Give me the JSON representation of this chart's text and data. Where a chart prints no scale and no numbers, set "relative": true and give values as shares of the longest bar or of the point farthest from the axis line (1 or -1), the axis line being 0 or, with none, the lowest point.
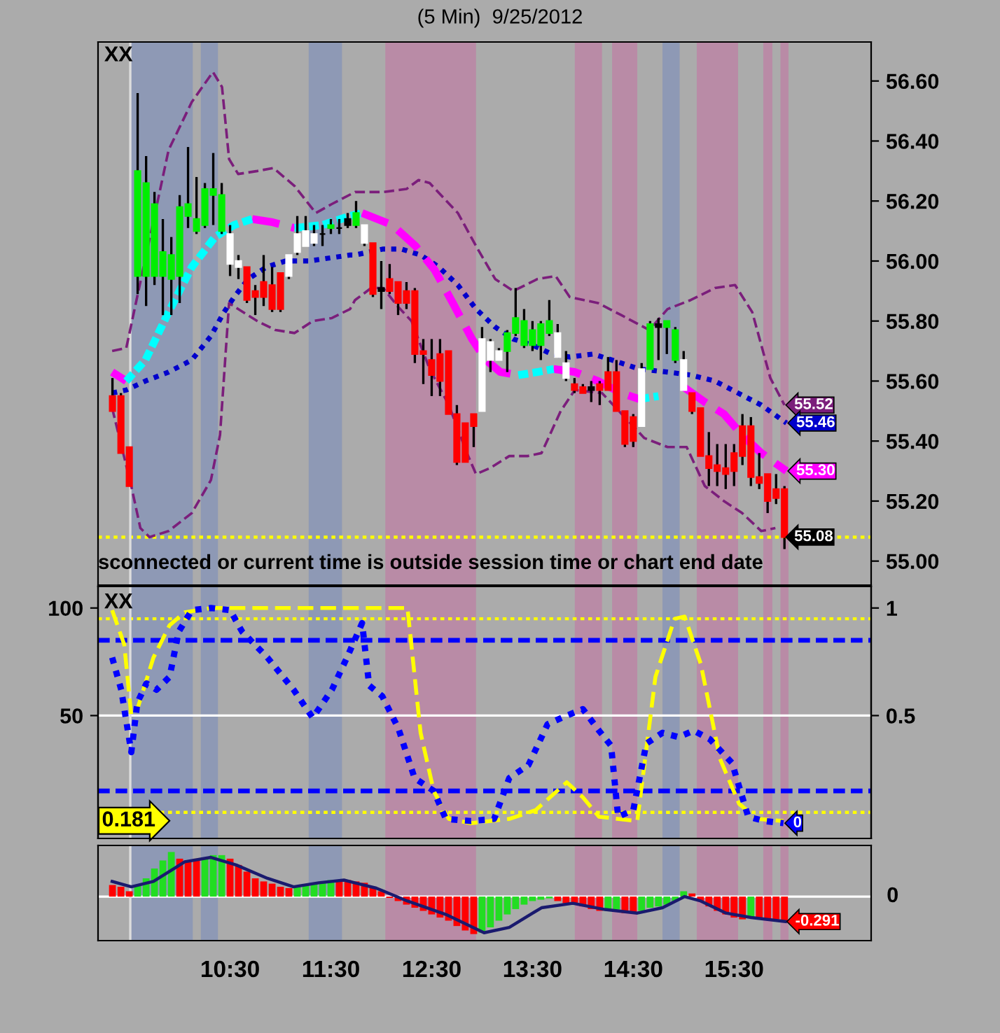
{
  "chart_data": [
    {
      "type": "candlestick",
      "title": "(5 Min)  9/25/2012",
      "x": [
        9.333,
        9.417,
        9.5,
        9.583,
        9.667,
        9.75,
        9.833,
        9.917,
        10,
        10.083,
        10.167,
        10.25,
        10.333,
        10.417,
        10.5,
        10.583,
        10.667,
        10.75,
        10.833,
        10.917,
        11,
        11.083,
        11.167,
        11.25,
        11.333,
        11.417,
        11.5,
        11.583,
        11.667,
        11.75,
        11.833,
        11.917,
        12,
        12.083,
        12.167,
        12.25,
        12.333,
        12.417,
        12.5,
        12.583,
        12.667,
        12.75,
        12.833,
        12.917,
        13,
        13.083,
        13.167,
        13.25,
        13.333,
        13.417,
        13.5,
        13.583,
        13.667,
        13.75,
        13.833,
        13.917,
        14,
        14.083,
        14.167,
        14.25,
        14.333,
        14.417,
        14.5,
        14.583,
        14.667,
        14.75,
        14.833,
        14.917,
        15,
        15.083,
        15.167,
        15.25,
        15.333,
        15.417,
        15.5,
        15.583,
        15.667,
        15.75,
        15.833,
        15.917,
        16
      ],
      "ohlc": [
        [
          55.55,
          55.61,
          55.5,
          55.5
        ],
        [
          55.55,
          55.56,
          55.36,
          55.36
        ],
        [
          55.38,
          55.38,
          55.25,
          55.25
        ],
        [
          55.95,
          56.56,
          55.89,
          56.3
        ],
        [
          55.95,
          56.35,
          55.85,
          56.26
        ],
        [
          55.95,
          56.23,
          55.92,
          56.19
        ],
        [
          55.95,
          56.14,
          55.82,
          56.03
        ],
        [
          55.94,
          56.08,
          55.82,
          56.02
        ],
        [
          55.95,
          56.22,
          55.86,
          56.18
        ],
        [
          56.15,
          56.38,
          56.11,
          56.19
        ],
        [
          56.1,
          56.28,
          56.09,
          56.14
        ],
        [
          56.12,
          56.26,
          56.11,
          56.24
        ],
        [
          56.22,
          56.36,
          56.12,
          56.24
        ],
        [
          56.1,
          56.26,
          56.09,
          56.22
        ],
        [
          55.99,
          56.12,
          55.95,
          56.09
        ],
        [
          55.98,
          56.02,
          55.94,
          56.0
        ],
        [
          55.98,
          55.98,
          55.86,
          55.87
        ],
        [
          55.9,
          55.92,
          55.82,
          55.88
        ],
        [
          55.93,
          56.02,
          55.85,
          55.88
        ],
        [
          55.92,
          55.98,
          55.83,
          55.84
        ],
        [
          55.96,
          55.96,
          55.83,
          55.84
        ],
        [
          55.95,
          56.02,
          55.94,
          56.02
        ],
        [
          56.03,
          56.15,
          56.02,
          56.09
        ],
        [
          56.05,
          56.15,
          56.05,
          56.1
        ],
        [
          56.06,
          56.12,
          56.05,
          56.09
        ],
        [
          56.09,
          56.12,
          56.05,
          56.09
        ],
        [
          56.11,
          56.14,
          56.09,
          56.12
        ],
        [
          56.11,
          56.14,
          56.09,
          56.11
        ],
        [
          56.12,
          56.16,
          56.11,
          56.14
        ],
        [
          56.12,
          56.2,
          56.11,
          56.16
        ],
        [
          56.06,
          56.12,
          56.05,
          56.12
        ],
        [
          56.06,
          56.06,
          55.88,
          55.89
        ],
        [
          55.91,
          56.0,
          55.84,
          55.9
        ],
        [
          55.94,
          55.99,
          55.89,
          55.9
        ],
        [
          55.93,
          55.93,
          55.82,
          55.86
        ],
        [
          55.9,
          55.93,
          55.84,
          55.86
        ],
        [
          55.9,
          55.91,
          55.66,
          55.69
        ],
        [
          55.7,
          55.74,
          55.59,
          55.69
        ],
        [
          55.67,
          55.74,
          55.55,
          55.62
        ],
        [
          55.69,
          55.74,
          55.55,
          55.6
        ],
        [
          55.7,
          55.7,
          55.49,
          55.49
        ],
        [
          55.49,
          55.52,
          55.32,
          55.33
        ],
        [
          55.46,
          55.46,
          55.33,
          55.33
        ],
        [
          55.49,
          55.49,
          55.38,
          55.45
        ],
        [
          55.5,
          55.78,
          55.5,
          55.74
        ],
        [
          55.67,
          55.74,
          55.63,
          55.73
        ],
        [
          55.67,
          55.71,
          55.67,
          55.7
        ],
        [
          55.7,
          55.77,
          55.63,
          55.76
        ],
        [
          55.76,
          55.91,
          55.75,
          55.81
        ],
        [
          55.72,
          55.84,
          55.71,
          55.8
        ],
        [
          55.72,
          55.8,
          55.7,
          55.77
        ],
        [
          55.72,
          55.8,
          55.67,
          55.79
        ],
        [
          55.76,
          55.87,
          55.75,
          55.8
        ],
        [
          55.68,
          55.79,
          55.68,
          55.76
        ],
        [
          55.61,
          55.7,
          55.6,
          55.66
        ],
        [
          55.59,
          55.61,
          55.56,
          55.57
        ],
        [
          55.58,
          55.59,
          55.56,
          55.56
        ],
        [
          55.58,
          55.6,
          55.53,
          55.57
        ],
        [
          55.59,
          55.6,
          55.52,
          55.57
        ],
        [
          55.63,
          55.68,
          55.57,
          55.57
        ],
        [
          55.63,
          55.67,
          55.5,
          55.5
        ],
        [
          55.5,
          55.5,
          55.38,
          55.39
        ],
        [
          55.48,
          55.49,
          55.38,
          55.4
        ],
        [
          55.45,
          55.66,
          55.45,
          55.64
        ],
        [
          55.64,
          55.8,
          55.64,
          55.79
        ],
        [
          55.78,
          55.81,
          55.67,
          55.79
        ],
        [
          55.78,
          55.8,
          55.69,
          55.8
        ],
        [
          55.67,
          55.78,
          55.66,
          55.77
        ],
        [
          55.57,
          55.7,
          55.57,
          55.67
        ],
        [
          55.56,
          55.56,
          55.49,
          55.5
        ],
        [
          55.51,
          55.51,
          55.35,
          55.35
        ],
        [
          55.35,
          55.43,
          55.25,
          55.31
        ],
        [
          55.32,
          55.39,
          55.25,
          55.3
        ],
        [
          55.31,
          55.39,
          55.24,
          55.29
        ],
        [
          55.36,
          55.39,
          55.25,
          55.3
        ],
        [
          55.45,
          55.49,
          55.32,
          55.35
        ],
        [
          55.45,
          55.48,
          55.25,
          55.28
        ],
        [
          55.28,
          55.36,
          55.24,
          55.26
        ],
        [
          55.29,
          55.29,
          55.16,
          55.2
        ],
        [
          55.24,
          55.29,
          55.19,
          55.21
        ],
        [
          55.24,
          55.25,
          55.04,
          55.08
        ]
      ],
      "colors": [
        "#ff0000",
        "#ff0000",
        "#ff0000",
        "#00ee00",
        "#00ee00",
        "#00ee00",
        "#00ee00",
        "#00ee00",
        "#00ee00",
        "#00ee00",
        "#00ee00",
        "#00ee00",
        "#00ee00",
        "#00ee00",
        "#ffffff",
        "#ffffff",
        "#ff0000",
        "#ff0000",
        "#ff0000",
        "#ff0000",
        "#ff0000",
        "#ffffff",
        "#ffffff",
        "#ffffff",
        "#ffffff",
        "#000000",
        "#00ee00",
        "#000000",
        "#000000",
        "#00ee00",
        "#ffffff",
        "#ff0000",
        "#000000",
        "#ff0000",
        "#ff0000",
        "#ff0000",
        "#ff0000",
        "#ff0000",
        "#ff0000",
        "#ff0000",
        "#ff0000",
        "#ff0000",
        "#ff0000",
        "#ff0000",
        "#ffffff",
        "#ffffff",
        "#ffffff",
        "#00ee00",
        "#00ee00",
        "#00ee00",
        "#00ee00",
        "#00ee00",
        "#00ee00",
        "#ffffff",
        "#ffffff",
        "#ff0000",
        "#ff0000",
        "#000000",
        "#ff0000",
        "#ff0000",
        "#ff0000",
        "#ff0000",
        "#ff0000",
        "#ffffff",
        "#00ee00",
        "#000000",
        "#00ee00",
        "#00ee00",
        "#ffffff",
        "#ff0000",
        "#ff0000",
        "#ff0000",
        "#ff0000",
        "#ff0000",
        "#ff0000",
        "#ff0000",
        "#ff0000",
        "#ff0000",
        "#ff0000",
        "#ff0000",
        "#ff0000"
      ],
      "value_labels": [
        null,
        null,
        null,
        null,
        null,
        null,
        null,
        null,
        null,
        null,
        null,
        null,
        null,
        null,
        null,
        null,
        null,
        null,
        null,
        null,
        null,
        null,
        null,
        null,
        null,
        null,
        null,
        null,
        null,
        null,
        null,
        null,
        null,
        null,
        null,
        null,
        null,
        null,
        null,
        null,
        null,
        null,
        null,
        null,
        null,
        null,
        null,
        null,
        null,
        null,
        null,
        null,
        null,
        null,
        null,
        null,
        null,
        null,
        null,
        null,
        null,
        null,
        null,
        null,
        null,
        null,
        null,
        null,
        null,
        null,
        null,
        null,
        null,
        null,
        null,
        null,
        null,
        null,
        null,
        null,
        "55.08"
      ],
      "series": [
        {
          "type": "line",
          "color": "#7b1e7b",
          "line_style": "dashed",
          "x": [
            9.33,
            9.47,
            9.89,
            10.12,
            10.33,
            10.42,
            10.49,
            10.58,
            10.77,
            10.93,
            11.14,
            11.35,
            11.51,
            11.74,
            12.02,
            12.25,
            12.37,
            12.48,
            12.76,
            12.94,
            13.13,
            13.31,
            13.55,
            13.73,
            13.87,
            14.15,
            14.38,
            14.66,
            14.84,
            15.07,
            15.31,
            15.51,
            15.68,
            15.86,
            16.0
          ],
          "values": [
            55.7,
            55.71,
            56.37,
            56.53,
            56.63,
            56.58,
            56.34,
            56.29,
            56.3,
            56.31,
            56.25,
            56.16,
            56.19,
            56.23,
            56.23,
            56.24,
            56.27,
            56.26,
            56.16,
            56.05,
            55.94,
            55.9,
            55.94,
            55.95,
            55.88,
            55.86,
            55.82,
            55.77,
            55.84,
            55.87,
            55.91,
            55.92,
            55.83,
            55.61,
            55.52
          ],
          "value_labels": [
            null,
            null,
            null,
            null,
            null,
            null,
            null,
            null,
            null,
            null,
            null,
            null,
            null,
            null,
            null,
            null,
            null,
            null,
            null,
            null,
            null,
            null,
            null,
            null,
            null,
            null,
            null,
            null,
            null,
            null,
            null,
            null,
            null,
            null,
            "55.52"
          ]
        },
        {
          "type": "line",
          "color": "#7b1e7b",
          "line_style": "dashed",
          "x": [
            9.33,
            9.52,
            9.61,
            9.7,
            9.89,
            10.12,
            10.31,
            10.4,
            10.49,
            10.58,
            10.77,
            10.95,
            11.14,
            11.32,
            11.51,
            11.69,
            11.74,
            11.9,
            12.02,
            12.16,
            12.3,
            12.48,
            12.67,
            12.85,
            12.94,
            13.08,
            13.27,
            13.45,
            13.59,
            13.78,
            13.92,
            14.19,
            14.61,
            14.84,
            15.03,
            15.21,
            15.4,
            15.58,
            15.77,
            15.91
          ],
          "values": [
            55.51,
            55.25,
            55.11,
            55.08,
            55.1,
            55.16,
            55.27,
            55.42,
            55.86,
            55.84,
            55.8,
            55.77,
            55.76,
            55.8,
            55.81,
            55.84,
            55.87,
            55.91,
            55.91,
            55.85,
            55.8,
            55.64,
            55.52,
            55.36,
            55.29,
            55.31,
            55.35,
            55.35,
            55.36,
            55.5,
            55.57,
            55.56,
            55.41,
            55.38,
            55.38,
            55.25,
            55.2,
            55.16,
            55.1,
            55.11
          ]
        },
        {
          "type": "line",
          "color": "#0000cc",
          "line_style": "dotted",
          "x": [
            9.33,
            9.47,
            9.66,
            9.89,
            10.12,
            10.31,
            10.44,
            10.54,
            10.68,
            10.86,
            11.05,
            11.28,
            11.69,
            11.74,
            12.02,
            12.2,
            12.39,
            12.57,
            12.76,
            12.94,
            13.13,
            13.31,
            13.5,
            13.69,
            13.87,
            14.1,
            14.29,
            14.56,
            14.84,
            15.07,
            15.31,
            15.54,
            15.77,
            16.02
          ],
          "values": [
            55.56,
            55.57,
            55.6,
            55.63,
            55.67,
            55.75,
            55.83,
            55.88,
            55.94,
            55.98,
            56.0,
            56.0,
            56.02,
            56.02,
            56.04,
            56.04,
            56.02,
            55.98,
            55.92,
            55.84,
            55.78,
            55.74,
            55.72,
            55.69,
            55.68,
            55.69,
            55.67,
            55.64,
            55.63,
            55.62,
            55.6,
            55.56,
            55.52,
            55.46
          ],
          "value_labels": [
            null,
            null,
            null,
            null,
            null,
            null,
            null,
            null,
            null,
            null,
            null,
            null,
            null,
            null,
            null,
            null,
            null,
            null,
            null,
            null,
            null,
            null,
            null,
            null,
            null,
            null,
            null,
            null,
            null,
            null,
            null,
            null,
            null,
            "55.46"
          ]
        },
        {
          "type": "line",
          "color": "#ff00ff",
          "line_style": "dashed",
          "x": [
            9.33,
            9.47,
            9.66,
            10.72,
            10.91,
            11.14,
            11.42,
            11.81,
            12.11,
            12.34,
            12.53,
            12.71,
            12.9,
            13.04,
            13.18,
            13.36,
            13.55,
            13.71,
            13.92,
            14.15,
            14.38,
            14.56,
            14.75,
            15.0,
            15.21,
            15.4,
            15.58,
            15.77,
            16.02
          ],
          "values": [
            55.63,
            55.6,
            null,
            56.14,
            56.13,
            56.11,
            null,
            56.16,
            56.12,
            56.05,
            55.97,
            55.86,
            55.74,
            55.67,
            55.63,
            55.62,
            null,
            55.64,
            55.63,
            55.6,
            55.56,
            55.54,
            null,
            55.58,
            55.53,
            55.49,
            55.42,
            55.36,
            55.3
          ],
          "value_labels": [
            null,
            null,
            null,
            null,
            null,
            null,
            null,
            null,
            null,
            null,
            null,
            null,
            null,
            null,
            null,
            null,
            null,
            null,
            null,
            null,
            null,
            null,
            null,
            null,
            null,
            null,
            null,
            null,
            "55.30"
          ]
        },
        {
          "type": "line",
          "color": "#00ffff",
          "line_style": "dashed",
          "x": [
            9.47,
            9.66,
            9.89,
            10.12,
            10.35,
            10.54,
            10.72,
            10.91,
            11.14,
            11.42,
            11.69,
            11.81,
            12.11,
            13.36,
            13.55,
            13.71,
            13.92,
            14.56,
            14.75
          ],
          "values": [
            55.6,
            55.67,
            55.83,
            55.98,
            56.08,
            56.12,
            56.14,
            null,
            56.11,
            56.12,
            56.15,
            56.16,
            null,
            55.62,
            55.63,
            55.64,
            null,
            55.54,
            55.55
          ]
        }
      ],
      "xlim": [
        9.19,
        16.86
      ],
      "ylim": [
        54.92,
        56.73
      ],
      "yticks": [
        {
          "value": 55,
          "label": "55.00"
        },
        {
          "value": 55.2,
          "label": "55.20"
        },
        {
          "value": 55.4,
          "label": "55.40"
        },
        {
          "value": 55.6,
          "label": "55.60"
        },
        {
          "value": 55.8,
          "label": "55.80"
        },
        {
          "value": 56,
          "label": "56.00"
        },
        {
          "value": 56.2,
          "label": "56.20"
        },
        {
          "value": 56.4,
          "label": "56.40"
        },
        {
          "value": 56.6,
          "label": "56.60"
        }
      ],
      "tick_labels": "y",
      "ref_lines": [
        {
          "axis": "y",
          "value": 55.08,
          "color": "#ffff00",
          "line_style": "dotted"
        },
        {
          "axis": "x",
          "value": 9.51,
          "color": "#dddddd",
          "line_style": "solid"
        }
      ],
      "bands": [
        {
          "axis": "x",
          "from": 9.51,
          "to": 10.13,
          "color": "#8e99b5"
        },
        {
          "axis": "x",
          "from": 10.21,
          "to": 10.38,
          "color": "#8e99b5"
        },
        {
          "axis": "x",
          "from": 11.28,
          "to": 11.61,
          "color": "#8e99b5"
        },
        {
          "axis": "x",
          "from": 12.04,
          "to": 12.94,
          "color": "#b98ba6"
        },
        {
          "axis": "x",
          "from": 13.92,
          "to": 14.19,
          "color": "#b98ba6"
        },
        {
          "axis": "x",
          "from": 14.29,
          "to": 14.54,
          "color": "#b98ba6"
        },
        {
          "axis": "x",
          "from": 14.79,
          "to": 14.96,
          "color": "#8e99b5"
        },
        {
          "axis": "x",
          "from": 15.13,
          "to": 15.54,
          "color": "#b98ba6"
        },
        {
          "axis": "x",
          "from": 15.79,
          "to": 15.88,
          "color": "#b98ba6"
        },
        {
          "axis": "x",
          "from": 15.96,
          "to": 16.04,
          "color": "#b98ba6"
        }
      ],
      "annotations": [
        "XX",
        "sconnected or current time is outside session time or chart end date"
      ]
    },
    {
      "type": "line",
      "series": [
        {
          "type": "line",
          "color": "#0000ff",
          "line_style": "dotted",
          "axis": "y2",
          "x": [
            9.33,
            9.42,
            9.52,
            9.58,
            9.67,
            9.77,
            9.9,
            9.99,
            10.12,
            10.31,
            10.5,
            10.62,
            10.87,
            11.13,
            11.32,
            11.51,
            11.66,
            11.81,
            11.88,
            12.01,
            12.17,
            12.33,
            12.52,
            12.64,
            12.89,
            13.12,
            13.27,
            13.46,
            13.65,
            13.84,
            14.0,
            14.16,
            14.28,
            14.35,
            14.5,
            14.63,
            14.79,
            14.95,
            15.1,
            15.26,
            15.48,
            15.64,
            15.8,
            15.99
          ],
          "values": [
            0.77,
            0.62,
            0.33,
            0.56,
            0.65,
            0.62,
            0.68,
            0.89,
            0.99,
            1.0,
            0.99,
            0.89,
            0.77,
            0.62,
            0.49,
            0.62,
            0.77,
            0.93,
            0.64,
            0.59,
            0.44,
            0.21,
            0.15,
            0.02,
            0.01,
            0.02,
            0.21,
            0.27,
            0.46,
            0.5,
            0.53,
            0.43,
            0.36,
            0.03,
            0.06,
            0.37,
            0.42,
            0.4,
            0.43,
            0.39,
            0.28,
            0.03,
            0.01,
            0
          ],
          "value_labels": [
            null,
            null,
            null,
            null,
            null,
            null,
            null,
            null,
            null,
            null,
            null,
            null,
            null,
            null,
            null,
            null,
            null,
            null,
            null,
            null,
            null,
            null,
            null,
            null,
            null,
            null,
            null,
            null,
            null,
            null,
            null,
            null,
            null,
            null,
            null,
            null,
            null,
            null,
            null,
            null,
            null,
            null,
            null,
            "0"
          ]
        },
        {
          "type": "line",
          "color": "#ffff00",
          "line_style": "dashed",
          "x": [
            9.33,
            9.45,
            9.52,
            9.58,
            9.74,
            9.9,
            10.05,
            10.31,
            12.26,
            12.39,
            12.52,
            12.67,
            12.89,
            13.27,
            13.53,
            13.84,
            14.0,
            14.16,
            14.54,
            14.72,
            14.91,
            15.01,
            15.17,
            15.36,
            15.55,
            15.73,
            15.99
          ],
          "values": [
            99,
            83,
            50,
            53,
            77,
            92,
            98,
            100,
            100,
            42,
            15,
            2,
            0,
            2,
            6,
            19,
            12,
            3,
            1,
            68,
            95,
            96,
            74,
            30,
            9,
            2,
            1
          ]
        }
      ],
      "xlim": [
        9.19,
        16.86
      ],
      "ylim": [
        -7.1,
        110
      ],
      "yticks": [
        50,
        100
      ],
      "y2lim": [
        -0.071,
        1.1
      ],
      "y2ticks": [
        0.5,
        1
      ],
      "tick_labels": "y",
      "ref_lines": [
        {
          "axis": "y",
          "value": 95,
          "color": "#ffff00",
          "line_style": "dotted"
        },
        {
          "axis": "y",
          "value": 85,
          "color": "#0000ff",
          "line_style": "dashed"
        },
        {
          "axis": "y",
          "value": 50,
          "color": "#ffffff",
          "line_style": "solid"
        },
        {
          "axis": "y",
          "value": 15,
          "color": "#0000ff",
          "line_style": "dashed"
        },
        {
          "axis": "y",
          "value": 5,
          "color": "#ffff00",
          "line_style": "dotted"
        },
        {
          "axis": "x",
          "value": 9.51,
          "color": "#dddddd",
          "line_style": "solid"
        }
      ],
      "bands": [
        {
          "axis": "x",
          "from": 9.51,
          "to": 10.13,
          "color": "#8e99b5"
        },
        {
          "axis": "x",
          "from": 10.21,
          "to": 10.38,
          "color": "#8e99b5"
        },
        {
          "axis": "x",
          "from": 11.28,
          "to": 11.61,
          "color": "#8e99b5"
        },
        {
          "axis": "x",
          "from": 12.04,
          "to": 12.94,
          "color": "#b98ba6"
        },
        {
          "axis": "x",
          "from": 13.92,
          "to": 14.19,
          "color": "#b98ba6"
        },
        {
          "axis": "x",
          "from": 14.29,
          "to": 14.54,
          "color": "#b98ba6"
        },
        {
          "axis": "x",
          "from": 14.79,
          "to": 14.96,
          "color": "#8e99b5"
        },
        {
          "axis": "x",
          "from": 15.13,
          "to": 15.54,
          "color": "#b98ba6"
        },
        {
          "axis": "x",
          "from": 15.79,
          "to": 15.88,
          "color": "#b98ba6"
        },
        {
          "axis": "x",
          "from": 15.96,
          "to": 16.04,
          "color": "#b98ba6"
        }
      ],
      "annotations": [
        "XX",
        "0.181"
      ]
    },
    {
      "type": "bar",
      "relative": true,
      "series": [
        {
          "type": "bar",
          "x": [
            9.333,
            9.417,
            9.5,
            9.583,
            9.667,
            9.75,
            9.833,
            9.917,
            10,
            10.083,
            10.167,
            10.25,
            10.333,
            10.417,
            10.5,
            10.583,
            10.667,
            10.75,
            10.833,
            10.917,
            11,
            11.083,
            11.167,
            11.25,
            11.333,
            11.417,
            11.5,
            11.583,
            11.667,
            11.75,
            11.833,
            11.917,
            12,
            12.083,
            12.167,
            12.25,
            12.333,
            12.417,
            12.5,
            12.583,
            12.667,
            12.75,
            12.833,
            12.917,
            13,
            13.083,
            13.167,
            13.25,
            13.333,
            13.417,
            13.5,
            13.583,
            13.667,
            13.75,
            13.833,
            13.917,
            14,
            14.083,
            14.167,
            14.25,
            14.333,
            14.417,
            14.5,
            14.583,
            14.667,
            14.75,
            14.833,
            14.917,
            15,
            15.083,
            15.167,
            15.25,
            15.333,
            15.417,
            15.5,
            15.583,
            15.667,
            15.75,
            15.833,
            15.917,
            16
          ],
          "values": [
            0.26,
            0.22,
            0.12,
            0.26,
            0.41,
            0.63,
            0.81,
            1,
            0.85,
            0.81,
            0.85,
            0.88,
            0.93,
            0.93,
            0.85,
            0.71,
            0.56,
            0.41,
            0.34,
            0.29,
            0.22,
            0.19,
            0.22,
            0.26,
            0.31,
            0.34,
            0.37,
            0.37,
            0.37,
            0.34,
            0.31,
            0.22,
            0.12,
            -0.03,
            -0.1,
            -0.18,
            -0.25,
            -0.32,
            -0.4,
            -0.47,
            -0.54,
            -0.66,
            -0.76,
            -0.84,
            -0.81,
            -0.69,
            -0.54,
            -0.4,
            -0.28,
            -0.18,
            -0.1,
            -0.07,
            -0.04,
            -0.1,
            -0.15,
            -0.18,
            -0.22,
            -0.28,
            -0.32,
            -0.32,
            -0.29,
            -0.37,
            -0.37,
            -0.32,
            -0.25,
            -0.22,
            -0.18,
            -0.1,
            0.12,
            0.07,
            -0.1,
            -0.22,
            -0.32,
            -0.4,
            -0.47,
            -0.51,
            -0.47,
            -0.47,
            -0.5,
            -0.51,
            -0.54
          ],
          "colors": [
            "#ff0000",
            "#ff0000",
            "#ff0000",
            "#22dd22",
            "#22dd22",
            "#22dd22",
            "#22dd22",
            "#22dd22",
            "#ff0000",
            "#ff0000",
            "#ff0000",
            "#22dd22",
            "#22dd22",
            "#22dd22",
            "#ff0000",
            "#ff0000",
            "#ff0000",
            "#ff0000",
            "#ff0000",
            "#ff0000",
            "#ff0000",
            "#ff0000",
            "#22dd22",
            "#22dd22",
            "#22dd22",
            "#22dd22",
            "#22dd22",
            "#ff0000",
            "#ff0000",
            "#ff0000",
            "#ff0000",
            "#ff0000",
            "#ff0000",
            "#ff0000",
            "#ff0000",
            "#ff0000",
            "#ff0000",
            "#ff0000",
            "#ff0000",
            "#ff0000",
            "#ff0000",
            "#ff0000",
            "#ff0000",
            "#ff0000",
            "#22dd22",
            "#22dd22",
            "#22dd22",
            "#22dd22",
            "#22dd22",
            "#22dd22",
            "#22dd22",
            "#22dd22",
            "#22dd22",
            "#ff0000",
            "#ff0000",
            "#ff0000",
            "#ff0000",
            "#ff0000",
            "#ff0000",
            "#22dd22",
            "#22dd22",
            "#ff0000",
            "#ff0000",
            "#22dd22",
            "#22dd22",
            "#22dd22",
            "#22dd22",
            "#22dd22",
            "#22dd22",
            "#ff0000",
            "#ff0000",
            "#ff0000",
            "#ff0000",
            "#ff0000",
            "#ff0000",
            "#ff0000",
            "#22dd22",
            "#ff0000",
            "#ff0000",
            "#ff0000",
            "#ff0000"
          ]
        },
        {
          "type": "line",
          "color": "#1a1a6e",
          "line_style": "solid",
          "x": [
            9.33,
            9.52,
            9.74,
            10.05,
            10.31,
            10.56,
            10.87,
            11.13,
            11.38,
            11.63,
            11.95,
            12.26,
            12.64,
            13.02,
            13.27,
            13.59,
            13.9,
            14.22,
            14.54,
            14.79,
            15.01,
            15.17,
            15.42,
            15.67,
            16.01
          ],
          "values": [
            0.34,
            0.22,
            0.34,
            0.78,
            0.88,
            0.71,
            0.41,
            0.22,
            0.31,
            0.37,
            0.19,
            -0.1,
            -0.4,
            -0.81,
            -0.69,
            -0.25,
            -0.15,
            -0.29,
            -0.37,
            -0.25,
            0,
            -0.1,
            -0.37,
            -0.47,
            -0.56
          ]
        }
      ],
      "xlim": [
        9.19,
        16.86
      ],
      "xticks": [
        {
          "value": 10.5,
          "label": "10:30"
        },
        {
          "value": 11.5,
          "label": "11:30"
        },
        {
          "value": 12.5,
          "label": "12:30"
        },
        {
          "value": 13.5,
          "label": "13:30"
        },
        {
          "value": 14.5,
          "label": "14:30"
        },
        {
          "value": 15.5,
          "label": "15:30"
        }
      ],
      "tick_labels": "x",
      "ref_lines": [
        {
          "axis": "y",
          "value": 0,
          "color": "#ffffff",
          "line_style": "solid"
        },
        {
          "axis": "x",
          "value": 9.51,
          "color": "#dddddd",
          "line_style": "solid"
        }
      ],
      "bands": [
        {
          "axis": "x",
          "from": 9.51,
          "to": 10.13,
          "color": "#8e99b5"
        },
        {
          "axis": "x",
          "from": 10.21,
          "to": 10.38,
          "color": "#8e99b5"
        },
        {
          "axis": "x",
          "from": 11.28,
          "to": 11.61,
          "color": "#8e99b5"
        },
        {
          "axis": "x",
          "from": 12.04,
          "to": 12.94,
          "color": "#b98ba6"
        },
        {
          "axis": "x",
          "from": 13.92,
          "to": 14.19,
          "color": "#b98ba6"
        },
        {
          "axis": "x",
          "from": 14.29,
          "to": 14.54,
          "color": "#b98ba6"
        },
        {
          "axis": "x",
          "from": 14.79,
          "to": 14.96,
          "color": "#8e99b5"
        },
        {
          "axis": "x",
          "from": 15.13,
          "to": 15.54,
          "color": "#b98ba6"
        },
        {
          "axis": "x",
          "from": 15.79,
          "to": 15.88,
          "color": "#b98ba6"
        },
        {
          "axis": "x",
          "from": 15.96,
          "to": 16.04,
          "color": "#b98ba6"
        }
      ],
      "annotations": [
        "0",
        "-0.291"
      ]
    }
  ]
}
